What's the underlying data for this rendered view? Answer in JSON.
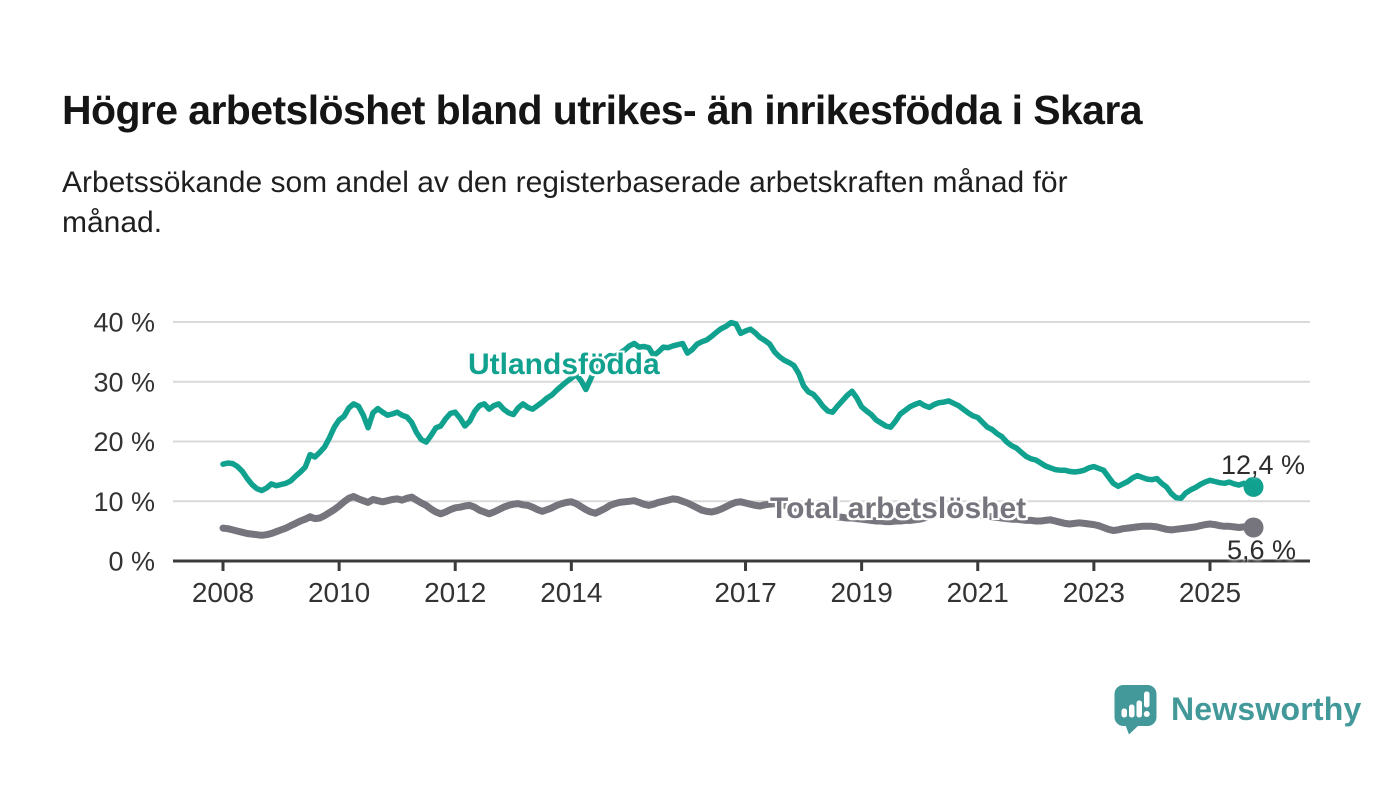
{
  "header": {
    "title": "Högre arbetslöshet bland utrikes- än inrikesfödda i Skara",
    "subtitle": "Arbetssökande som andel av den registerbaserade arbetskraften månad för månad.",
    "subtitle_lines": [
      "Arbetssökande som andel av den registerbaserade arbetskraften månad för",
      "månad."
    ]
  },
  "branding": {
    "logo_text": "Newsworthy",
    "logo_color": "#43989A",
    "logo_icon": "speech-bubble-bar-chart-icon"
  },
  "chart_data": {
    "type": "line",
    "title": "Högre arbetslöshet bland utrikes- än inrikesfödda i Skara",
    "subtitle": "Arbetssökande som andel av den registerbaserade arbetskraften månad för månad.",
    "xlabel": "",
    "ylabel": "",
    "x_range_years": [
      2008,
      2026
    ],
    "ylim": [
      0,
      42
    ],
    "grid": "horizontal-only",
    "legend": "inline-series-labels",
    "x_interval": "monthly",
    "x_start": "2008-01",
    "x_end": "2025-10",
    "colors": {
      "grid": "#D9D9D9",
      "axis_text": "#333333",
      "axis_line": "#3B3B3B",
      "value_label_text": "#2D2D2D"
    },
    "x_ticks": [
      {
        "year": 2008,
        "label": "2008"
      },
      {
        "year": 2010,
        "label": "2010"
      },
      {
        "year": 2012,
        "label": "2012"
      },
      {
        "year": 2014,
        "label": "2014"
      },
      {
        "year": 2017,
        "label": "2017"
      },
      {
        "year": 2019,
        "label": "2019"
      },
      {
        "year": 2021,
        "label": "2021"
      },
      {
        "year": 2023,
        "label": "2023"
      },
      {
        "year": 2025,
        "label": "2025"
      }
    ],
    "y_ticks": [
      {
        "value": 0,
        "label": "0 %"
      },
      {
        "value": 10,
        "label": "10 %"
      },
      {
        "value": 20,
        "label": "20 %"
      },
      {
        "value": 30,
        "label": "30 %"
      },
      {
        "value": 40,
        "label": "40 %"
      }
    ],
    "series": [
      {
        "id": "utlandsfodda",
        "name": "Utlandsfödda",
        "color": "#10A18F",
        "end_value": 12.4,
        "end_label": "12,4 %",
        "values_by_year": {
          "2008": [
            16.2,
            16.4,
            16.3,
            15.8,
            15.0,
            13.8,
            12.8,
            12.1,
            11.8,
            12.2,
            12.9,
            12.6
          ],
          "2009": [
            12.8,
            13.0,
            13.4,
            14.2,
            14.9,
            15.7,
            17.8,
            17.4,
            18.2,
            19.1,
            20.6,
            22.4
          ],
          "2010": [
            23.6,
            24.2,
            25.6,
            26.3,
            25.9,
            24.4,
            22.3,
            24.8,
            25.5,
            24.9,
            24.4,
            24.6
          ],
          "2011": [
            24.9,
            24.4,
            24.1,
            23.2,
            21.5,
            20.3,
            19.9,
            21.0,
            22.3,
            22.6,
            23.8,
            24.7
          ],
          "2012": [
            24.9,
            23.9,
            22.6,
            23.4,
            25.0,
            26.0,
            26.3,
            25.4,
            26.0,
            26.3,
            25.4,
            24.8
          ],
          "2013": [
            24.5,
            25.6,
            26.3,
            25.7,
            25.4,
            26.0,
            26.6,
            27.3,
            27.8,
            28.6,
            29.3,
            30.0
          ],
          "2014": [
            30.6,
            31.2,
            30.2,
            28.7,
            30.5,
            32.2,
            33.3,
            33.8,
            34.4,
            34.2,
            34.8,
            35.3
          ],
          "2015": [
            36.0,
            36.4,
            35.8,
            35.9,
            35.7,
            34.4,
            35.0,
            35.8,
            35.7,
            36.0,
            36.2,
            36.4
          ],
          "2016": [
            34.8,
            35.4,
            36.3,
            36.7,
            37.0,
            37.6,
            38.3,
            38.9,
            39.3,
            39.9,
            39.7,
            38.1
          ],
          "2017": [
            38.5,
            38.8,
            38.2,
            37.4,
            36.9,
            36.3,
            35.0,
            34.2,
            33.6,
            33.2,
            32.7,
            31.4
          ],
          "2018": [
            29.3,
            28.3,
            27.9,
            27.0,
            25.9,
            25.1,
            24.9,
            25.9,
            26.8,
            27.7,
            28.4,
            27.3
          ],
          "2019": [
            25.8,
            25.1,
            24.5,
            23.6,
            23.1,
            22.6,
            22.4,
            23.4,
            24.6,
            25.2,
            25.8,
            26.2
          ],
          "2020": [
            26.5,
            26.0,
            25.7,
            26.2,
            26.5,
            26.6,
            26.8,
            26.4,
            26.0,
            25.4,
            24.8,
            24.3
          ],
          "2021": [
            24.0,
            23.2,
            22.4,
            22.0,
            21.3,
            20.8,
            19.9,
            19.3,
            18.9,
            18.2,
            17.5,
            17.1
          ],
          "2022": [
            16.9,
            16.4,
            15.9,
            15.6,
            15.3,
            15.2,
            15.2,
            15.0,
            14.9,
            15.0,
            15.2,
            15.6
          ],
          "2023": [
            15.8,
            15.5,
            15.2,
            14.1,
            13.0,
            12.5,
            12.9,
            13.3,
            13.9,
            14.3,
            14.0,
            13.7
          ],
          "2024": [
            13.6,
            13.8,
            13.0,
            12.4,
            11.3,
            10.6,
            10.5,
            11.4,
            11.9,
            12.3,
            12.8,
            13.2
          ],
          "2025": [
            13.5,
            13.3,
            13.1,
            13.0,
            13.2,
            12.9,
            12.7,
            13.0,
            12.5,
            12.4
          ]
        }
      },
      {
        "id": "total-arbetsloshet",
        "name": "Total arbetslöshet",
        "color": "#76747C",
        "end_value": 5.6,
        "end_label": "5,6 %",
        "values_by_year": {
          "2008": [
            5.5,
            5.4,
            5.2,
            5.0,
            4.8,
            4.6,
            4.5,
            4.4,
            4.3,
            4.4,
            4.6,
            4.9
          ],
          "2009": [
            5.2,
            5.5,
            5.9,
            6.3,
            6.7,
            7.0,
            7.4,
            7.1,
            7.2,
            7.6,
            8.1,
            8.6
          ],
          "2010": [
            9.2,
            9.9,
            10.5,
            10.8,
            10.4,
            10.1,
            9.8,
            10.3,
            10.1,
            9.9,
            10.1,
            10.3
          ],
          "2011": [
            10.4,
            10.2,
            10.5,
            10.7,
            10.2,
            9.7,
            9.3,
            8.7,
            8.2,
            7.9,
            8.2,
            8.6
          ],
          "2012": [
            8.9,
            9.0,
            9.2,
            9.3,
            9.0,
            8.5,
            8.2,
            7.9,
            8.2,
            8.6,
            9.0,
            9.3
          ],
          "2013": [
            9.5,
            9.6,
            9.4,
            9.3,
            9.0,
            8.6,
            8.3,
            8.6,
            8.9,
            9.3,
            9.6,
            9.8
          ],
          "2014": [
            9.9,
            9.6,
            9.1,
            8.6,
            8.2,
            8.0,
            8.4,
            8.8,
            9.3,
            9.6,
            9.8,
            9.9
          ],
          "2015": [
            10.0,
            10.1,
            9.8,
            9.5,
            9.3,
            9.5,
            9.8,
            10.0,
            10.2,
            10.4,
            10.3,
            10.0
          ],
          "2016": [
            9.7,
            9.3,
            8.9,
            8.5,
            8.3,
            8.2,
            8.4,
            8.7,
            9.1,
            9.5,
            9.8,
            9.9
          ],
          "2017": [
            9.7,
            9.5,
            9.3,
            9.2,
            9.4,
            9.5,
            9.6,
            9.5,
            9.3,
            9.1,
            8.9,
            8.7
          ],
          "2018": [
            8.5,
            8.3,
            8.1,
            7.9,
            7.7,
            7.6,
            7.5,
            7.4,
            7.3,
            7.2,
            7.2,
            7.1
          ],
          "2019": [
            7.0,
            6.9,
            6.8,
            6.7,
            6.7,
            6.6,
            6.6,
            6.7,
            6.7,
            6.8,
            6.8,
            6.9
          ],
          "2020": [
            7.0,
            7.2,
            7.6,
            8.0,
            8.2,
            8.3,
            8.3,
            8.2,
            8.1,
            8.0,
            7.9,
            7.8
          ],
          "2021": [
            7.7,
            7.6,
            7.5,
            7.4,
            7.3,
            7.2,
            7.1,
            7.0,
            7.0,
            6.9,
            6.8,
            6.8
          ],
          "2022": [
            6.7,
            6.7,
            6.8,
            6.9,
            6.7,
            6.5,
            6.3,
            6.2,
            6.3,
            6.4,
            6.3,
            6.2
          ],
          "2023": [
            6.1,
            5.9,
            5.6,
            5.3,
            5.1,
            5.2,
            5.4,
            5.5,
            5.6,
            5.7,
            5.8,
            5.8
          ],
          "2024": [
            5.8,
            5.7,
            5.5,
            5.3,
            5.2,
            5.3,
            5.4,
            5.5,
            5.6,
            5.7,
            5.9,
            6.1
          ],
          "2025": [
            6.2,
            6.1,
            5.9,
            5.8,
            5.8,
            5.7,
            5.6,
            5.7,
            5.7,
            5.6
          ]
        }
      }
    ]
  }
}
